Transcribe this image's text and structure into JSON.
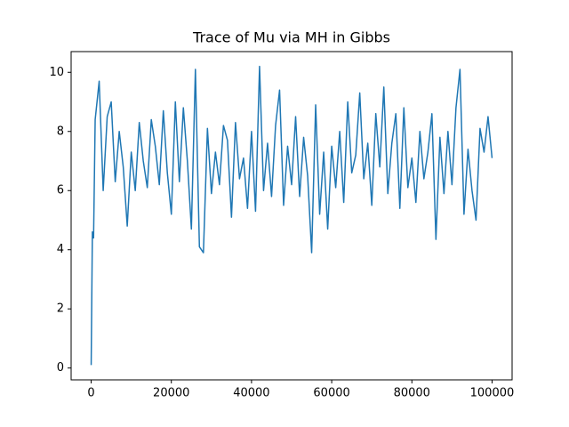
{
  "chart_data": {
    "type": "line",
    "title": "Trace of Mu via MH in Gibbs",
    "x": [
      0,
      300,
      600,
      1000,
      2000,
      3000,
      4000,
      5000,
      6000,
      7000,
      8000,
      9000,
      10000,
      11000,
      12000,
      13000,
      14000,
      15000,
      16000,
      17000,
      18000,
      19000,
      20000,
      21000,
      22000,
      23000,
      24000,
      25000,
      26000,
      27000,
      28000,
      29000,
      30000,
      31000,
      32000,
      33000,
      34000,
      35000,
      36000,
      37000,
      38000,
      39000,
      40000,
      41000,
      42000,
      43000,
      44000,
      45000,
      46000,
      47000,
      48000,
      49000,
      50000,
      51000,
      52000,
      53000,
      54000,
      55000,
      56000,
      57000,
      58000,
      59000,
      60000,
      61000,
      62000,
      63000,
      64000,
      65000,
      66000,
      67000,
      68000,
      69000,
      70000,
      71000,
      72000,
      73000,
      74000,
      75000,
      76000,
      77000,
      78000,
      79000,
      80000,
      81000,
      82000,
      83000,
      84000,
      85000,
      86000,
      87000,
      88000,
      89000,
      90000,
      91000,
      92000,
      93000,
      94000,
      95000,
      96000,
      97000,
      98000,
      99000,
      100000
    ],
    "series": [
      {
        "color": "#1f77b4",
        "values": [
          0.1,
          4.6,
          4.4,
          8.4,
          9.7,
          6.0,
          8.5,
          9.0,
          6.3,
          8.0,
          6.8,
          4.8,
          7.3,
          6.0,
          8.3,
          7.0,
          6.1,
          8.4,
          7.5,
          6.2,
          8.7,
          6.6,
          5.2,
          9.0,
          6.3,
          8.8,
          7.0,
          4.7,
          10.1,
          4.1,
          3.9,
          8.1,
          5.9,
          7.3,
          6.2,
          8.2,
          7.7,
          5.1,
          8.3,
          6.4,
          7.1,
          5.4,
          8.0,
          5.3,
          10.2,
          6.0,
          7.6,
          5.8,
          8.2,
          9.4,
          5.5,
          7.5,
          6.2,
          8.5,
          5.8,
          7.8,
          6.5,
          3.9,
          8.9,
          5.2,
          7.3,
          4.7,
          7.5,
          6.1,
          8.0,
          5.6,
          9.0,
          6.6,
          7.2,
          9.3,
          6.4,
          7.6,
          5.5,
          8.6,
          6.8,
          9.5,
          5.9,
          7.6,
          8.6,
          5.4,
          8.8,
          6.1,
          7.1,
          5.6,
          8.0,
          6.4,
          7.3,
          8.6,
          4.35,
          7.8,
          5.9,
          8.0,
          6.2,
          8.8,
          10.1,
          5.2,
          7.4,
          6.0,
          5.0,
          8.1,
          7.3,
          8.5,
          7.1
        ]
      }
    ],
    "xlim": [
      -5000,
      105000
    ],
    "xticks": [
      0,
      20000,
      40000,
      60000,
      80000,
      100000
    ],
    "ylim": [
      -0.4,
      10.7
    ],
    "yticks": [
      0,
      2,
      4,
      6,
      8,
      10
    ]
  }
}
